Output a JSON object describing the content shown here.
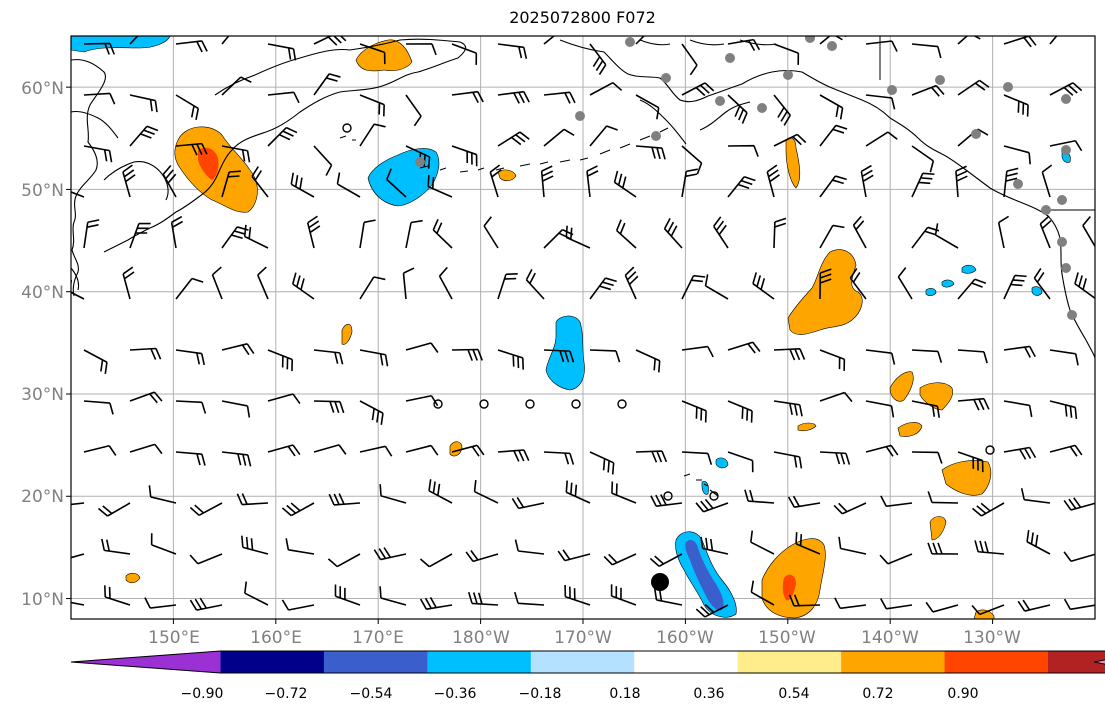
{
  "title": "2025072800 F072",
  "map": {
    "lat_labels": [
      "60°N",
      "50°N",
      "40°N",
      "30°N",
      "20°N",
      "10°N"
    ],
    "lon_labels": [
      "150°E",
      "160°E",
      "170°E",
      "180°W",
      "170°W",
      "160°W",
      "150°W",
      "140°W",
      "130°W"
    ],
    "extent": {
      "lon_min": 140,
      "lon_max": 240,
      "lat_min": 8,
      "lat_max": 65
    },
    "gridlines": true
  },
  "colorbar": {
    "labels": [
      "−0.90",
      "−0.72",
      "−0.54",
      "−0.36",
      "−0.18",
      "0.18",
      "0.36",
      "0.54",
      "0.72",
      "0.90"
    ],
    "colors": [
      "#9b30d4",
      "#00008b",
      "#3a5fcd",
      "#00bfff",
      "#b3e1ff",
      "#ffffff",
      "#ffec8b",
      "#ffa500",
      "#ff4500",
      "#b22222",
      "#ff88b0"
    ]
  },
  "colors": {
    "orange": "#ffa500",
    "red_orange": "#ff4500",
    "blue": "#00bfff",
    "light_blue": "#b3e1ff",
    "dark_blue": "#3a5fcd",
    "yellow": "#ffec8b",
    "station_gray": "#808080",
    "grid": "#b0b0b0"
  }
}
